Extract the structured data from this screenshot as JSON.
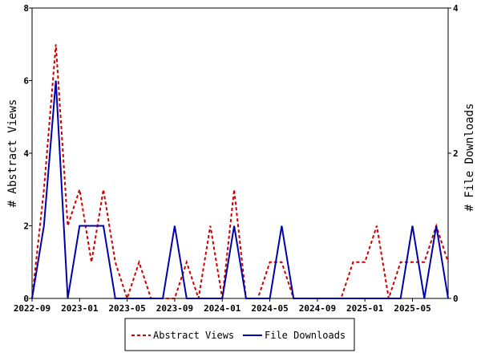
{
  "chart_data": {
    "type": "line",
    "x": [
      "2022-09",
      "2022-10",
      "2022-11",
      "2022-12",
      "2023-01",
      "2023-02",
      "2023-03",
      "2023-04",
      "2023-05",
      "2023-06",
      "2023-07",
      "2023-08",
      "2023-09",
      "2023-10",
      "2023-11",
      "2023-12",
      "2024-01",
      "2024-02",
      "2024-03",
      "2024-04",
      "2024-05",
      "2024-06",
      "2024-07",
      "2024-08",
      "2024-09",
      "2024-10",
      "2024-11",
      "2024-12",
      "2025-01",
      "2025-02",
      "2025-03",
      "2025-04",
      "2025-05",
      "2025-06",
      "2025-07",
      "2025-08"
    ],
    "x_ticks": [
      "2022-09",
      "2023-01",
      "2023-05",
      "2023-09",
      "2024-01",
      "2024-05",
      "2024-09",
      "2025-01",
      "2025-05"
    ],
    "series": [
      {
        "name": "Abstract Views",
        "axis": "left",
        "color": "#cc0000",
        "style": "dashed",
        "values": [
          0,
          3,
          7,
          2,
          3,
          1,
          3,
          1,
          0,
          1,
          0,
          0,
          0,
          1,
          0,
          2,
          0,
          3,
          0,
          0,
          1,
          1,
          0,
          0,
          0,
          0,
          0,
          1,
          1,
          2,
          0,
          1,
          1,
          1,
          2,
          1
        ]
      },
      {
        "name": "File Downloads",
        "axis": "right",
        "color": "#0000aa",
        "style": "solid",
        "values": [
          0,
          1,
          3,
          0,
          1,
          1,
          1,
          0,
          0,
          0,
          0,
          0,
          1,
          0,
          0,
          0,
          0,
          1,
          0,
          0,
          0,
          1,
          0,
          0,
          0,
          0,
          0,
          0,
          0,
          0,
          0,
          0,
          1,
          0,
          1,
          0
        ]
      }
    ],
    "ylabel_left": "# Abstract Views",
    "ylabel_right": "# File Downloads",
    "ylim_left": [
      0,
      8
    ],
    "yticks_left": [
      "0",
      "2",
      "4",
      "6",
      "8"
    ],
    "ylim_right": [
      0,
      4
    ],
    "yticks_right": [
      "0",
      "2",
      "4"
    ],
    "legend": {
      "position": "bottom",
      "entries": [
        "Abstract Views",
        "File Downloads"
      ]
    },
    "grid": false
  }
}
